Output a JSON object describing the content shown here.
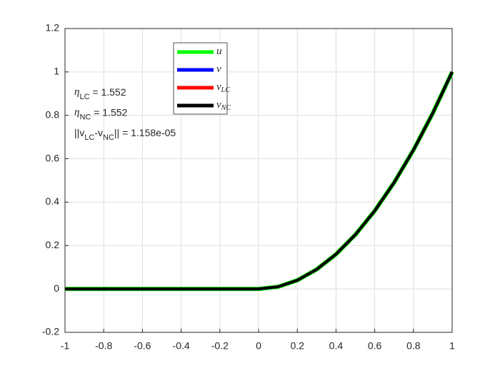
{
  "chart_data": {
    "type": "line",
    "x": [
      -1,
      -0.9,
      -0.8,
      -0.7,
      -0.6,
      -0.5,
      -0.4,
      -0.3,
      -0.2,
      -0.1,
      0,
      0.1,
      0.2,
      0.3,
      0.4,
      0.5,
      0.6,
      0.7,
      0.8,
      0.9,
      1
    ],
    "series": [
      {
        "name": "u",
        "color": "#00ff00",
        "values": [
          0,
          0,
          0,
          0,
          0,
          0,
          0,
          0,
          0,
          0,
          0,
          0.01,
          0.04,
          0.09,
          0.16,
          0.25,
          0.36,
          0.49,
          0.64,
          0.81,
          1
        ]
      },
      {
        "name": "v",
        "color": "#0000ff",
        "values": [
          0,
          0,
          0,
          0,
          0,
          0,
          0,
          0,
          0,
          0,
          0,
          0.01,
          0.04,
          0.09,
          0.16,
          0.25,
          0.36,
          0.49,
          0.64,
          0.81,
          1
        ]
      },
      {
        "name": "v",
        "subscript": "LC",
        "color": "#ff0000",
        "values": [
          0,
          0,
          0,
          0,
          0,
          0,
          0,
          0,
          0,
          0,
          0,
          0.01,
          0.04,
          0.09,
          0.16,
          0.25,
          0.36,
          0.49,
          0.64,
          0.81,
          1
        ]
      },
      {
        "name": "v",
        "subscript": "NC",
        "color": "#000000",
        "values": [
          0,
          0,
          0,
          0,
          0,
          0,
          0,
          0,
          0,
          0,
          0,
          0.01,
          0.04,
          0.09,
          0.16,
          0.25,
          0.36,
          0.49,
          0.64,
          0.81,
          1
        ]
      }
    ],
    "xlim": [
      -1,
      1
    ],
    "xticks": [
      -1,
      -0.8,
      -0.6,
      -0.4,
      -0.2,
      0,
      0.2,
      0.4,
      0.6,
      0.8,
      1
    ],
    "ylim": [
      -0.2,
      1.2
    ],
    "yticks": [
      -0.2,
      0,
      0.2,
      0.4,
      0.6,
      0.8,
      1,
      1.2
    ],
    "grid": true,
    "annotations": [
      {
        "parts": [
          {
            "text": "η",
            "math": true
          },
          {
            "text": "LC",
            "sub": true
          },
          {
            "text": " = 1.552"
          }
        ]
      },
      {
        "parts": [
          {
            "text": "η",
            "math": true
          },
          {
            "text": "NC",
            "sub": true
          },
          {
            "text": " = 1.552"
          }
        ]
      },
      {
        "parts": [
          {
            "text": "||v"
          },
          {
            "text": "LC",
            "sub": true
          },
          {
            "text": "-v"
          },
          {
            "text": "NC",
            "sub": true
          },
          {
            "text": "|| = 1.158e-05"
          }
        ]
      }
    ]
  }
}
